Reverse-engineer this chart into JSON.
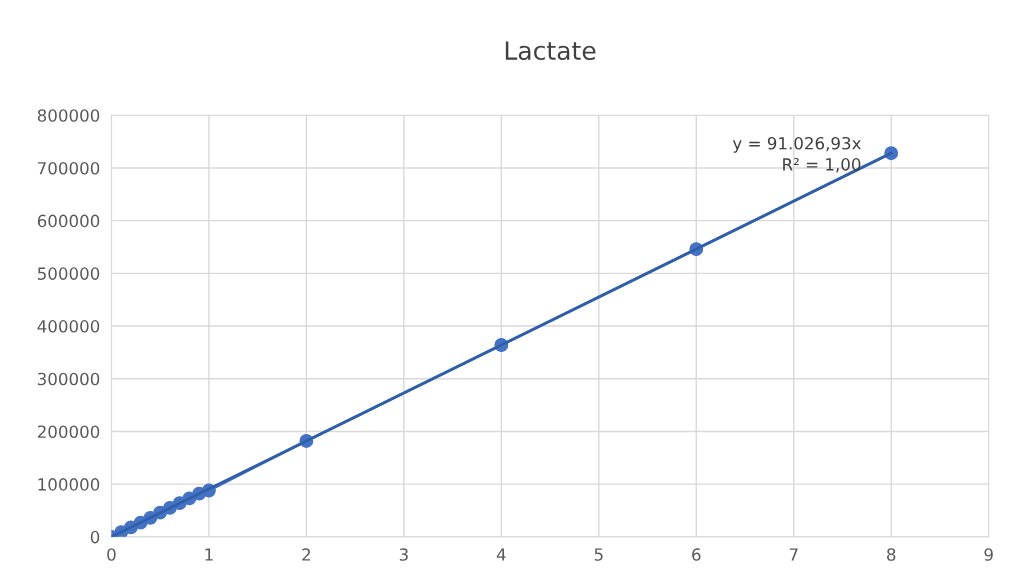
{
  "chart_data": {
    "type": "line",
    "title": "Lactate",
    "series": [
      {
        "color": "#4472c4",
        "marker": "circle",
        "x": [
          0,
          0.1,
          0.2,
          0.3,
          0.4,
          0.5,
          0.6,
          0.7,
          0.8,
          0.9,
          1,
          2,
          4,
          6,
          8
        ],
        "values": [
          0,
          9000,
          18000,
          27000,
          36000,
          46000,
          55000,
          64000,
          73000,
          82000,
          88000,
          182000,
          364000,
          546000,
          728000
        ]
      },
      {
        "type": "line",
        "color": "#2f5fa8",
        "marker": "none",
        "x": [
          0,
          8
        ],
        "values": [
          0,
          728000
        ]
      }
    ],
    "xlim": [
      0,
      9
    ],
    "xticks": [
      0,
      1,
      2,
      3,
      4,
      5,
      6,
      7,
      8,
      9
    ],
    "ylim": [
      0,
      800000
    ],
    "yticks": [
      0,
      100000,
      200000,
      300000,
      400000,
      500000,
      600000,
      700000,
      800000
    ],
    "annotations": [
      "y = 91.026,93x",
      "R² = 1,00"
    ],
    "grid": true,
    "legend": false
  }
}
